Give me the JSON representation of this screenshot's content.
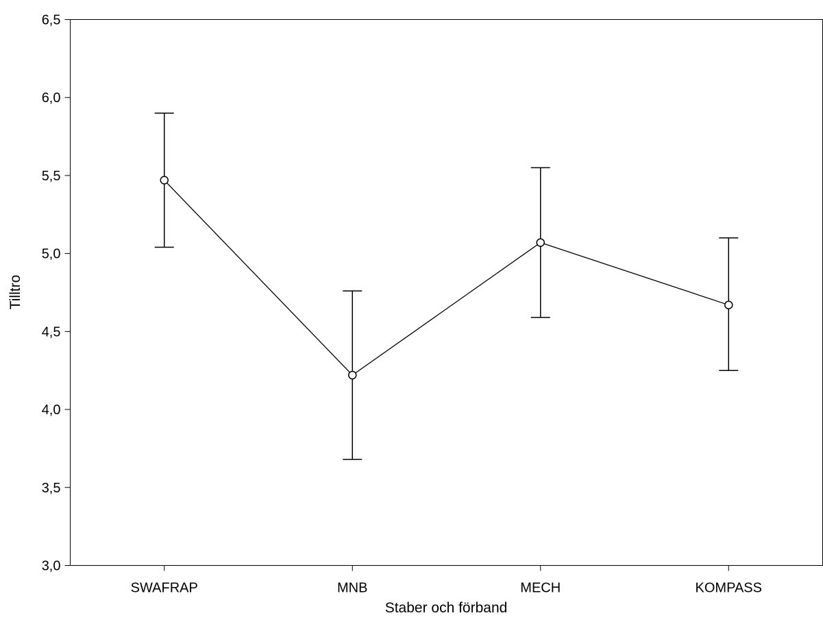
{
  "chart_data": {
    "type": "line",
    "xlabel": "Staber och förband",
    "ylabel": "Tilltro",
    "categories": [
      "SWAFRAP",
      "MNB",
      "MECH",
      "KOMPASS"
    ],
    "series": [
      {
        "values": [
          5.47,
          4.22,
          5.07,
          4.67
        ],
        "error_low": [
          5.04,
          3.68,
          4.59,
          4.25
        ],
        "error_high": [
          5.9,
          4.76,
          5.55,
          5.1
        ]
      }
    ],
    "ylim": [
      3.0,
      6.5
    ],
    "yticks": [
      3.0,
      3.5,
      4.0,
      4.5,
      5.0,
      5.5,
      6.0,
      6.5
    ],
    "ytick_labels": [
      "3,0",
      "3,5",
      "4,0",
      "4,5",
      "5,0",
      "5,5",
      "6,0",
      "6,5"
    ],
    "grid": false,
    "legend": "none",
    "colors": {
      "line": "#000000",
      "marker_fill": "#ffffff",
      "axis": "#000000"
    }
  }
}
